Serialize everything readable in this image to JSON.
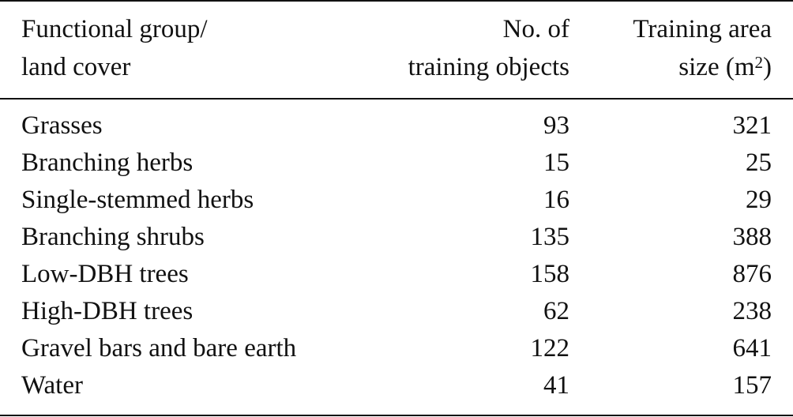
{
  "table": {
    "headers": {
      "col1_line1": "Functional group/",
      "col1_line2": "land cover",
      "col2_line1": "No. of",
      "col2_line2": "training objects",
      "col3_line1": "Training area",
      "col3_line2_prefix": "size (m",
      "col3_line2_sup": "2",
      "col3_line2_suffix": ")"
    },
    "rows": [
      {
        "group": "Grasses",
        "objects": "93",
        "area": "321"
      },
      {
        "group": "Branching herbs",
        "objects": "15",
        "area": "25"
      },
      {
        "group": "Single-stemmed herbs",
        "objects": "16",
        "area": "29"
      },
      {
        "group": "Branching shrubs",
        "objects": "135",
        "area": "388"
      },
      {
        "group": "Low-DBH trees",
        "objects": "158",
        "area": "876"
      },
      {
        "group": "High-DBH trees",
        "objects": "62",
        "area": "238"
      },
      {
        "group": "Gravel bars and bare earth",
        "objects": "122",
        "area": "641"
      },
      {
        "group": "Water",
        "objects": "41",
        "area": "157"
      }
    ]
  }
}
